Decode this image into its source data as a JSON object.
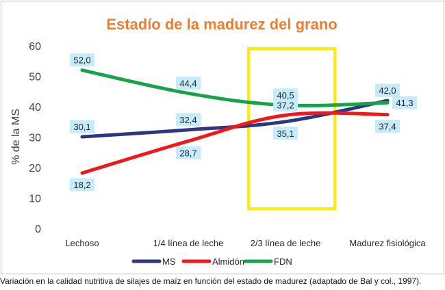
{
  "colors": {
    "title": "#ee7d31",
    "highlight_box": "#ffed00",
    "label_bg": "#c6ecfb"
  },
  "caption": "Variación en la calidad nutritiva de silajes de maíz en función del estado de madurez (adaptado de Bal y col., 1997).",
  "chart_data": {
    "type": "line",
    "title": "Estadío de la madurez del grano",
    "xlabel": "",
    "ylabel": "% de la MS",
    "ylim": [
      0,
      60
    ],
    "yticks": [
      0,
      10,
      20,
      30,
      40,
      50,
      60
    ],
    "grid": false,
    "legend_position": "bottom",
    "categories": [
      "Lechoso",
      "1/4 línea de leche",
      "2/3 línea de leche",
      "Madurez fisiológica"
    ],
    "series": [
      {
        "name": "MS",
        "color": "#2e3583",
        "values": [
          30.1,
          32.4,
          35.1,
          42.0
        ],
        "labels": [
          "30,1",
          "32,4",
          "35,1",
          "42,0"
        ],
        "label_pos": [
          "above",
          "above",
          "below",
          "above"
        ]
      },
      {
        "name": "Almidón",
        "color": "#f01818",
        "values": [
          18.2,
          28.7,
          37.2,
          37.4
        ],
        "labels": [
          "18,2",
          "28,7",
          "37,2",
          "37,4"
        ],
        "label_pos": [
          "below",
          "below",
          "above",
          "below"
        ]
      },
      {
        "name": "FDN",
        "color": "#16a34a",
        "values": [
          52.0,
          44.4,
          40.5,
          41.3
        ],
        "labels": [
          "52,0",
          "44,4",
          "40,5",
          "41,3"
        ],
        "label_pos": [
          "above",
          "above",
          "above",
          "right"
        ]
      }
    ],
    "highlight_category": "2/3 línea de leche"
  }
}
